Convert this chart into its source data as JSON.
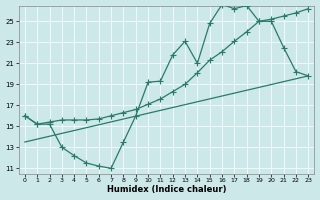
{
  "xlabel": "Humidex (Indice chaleur)",
  "bg_color": "#cce8e8",
  "line_color": "#2a7a6a",
  "grid_color": "#b0d4d4",
  "xlim": [
    -0.5,
    23.5
  ],
  "ylim": [
    10.5,
    26.5
  ],
  "xticks": [
    0,
    1,
    2,
    3,
    4,
    5,
    6,
    7,
    8,
    9,
    10,
    11,
    12,
    13,
    14,
    15,
    16,
    17,
    18,
    19,
    20,
    21,
    22,
    23
  ],
  "yticks": [
    11,
    13,
    15,
    17,
    19,
    21,
    23,
    25
  ],
  "line1_x": [
    0,
    1,
    2,
    3,
    4,
    5,
    6,
    7,
    8,
    9,
    10,
    11,
    12,
    13,
    14,
    15,
    16,
    17,
    18,
    19,
    20,
    21,
    22,
    23
  ],
  "line1_y": [
    16.0,
    15.2,
    15.2,
    13.0,
    12.2,
    11.5,
    11.2,
    11.0,
    13.5,
    16.0,
    19.2,
    19.3,
    21.8,
    23.1,
    21.0,
    24.8,
    26.6,
    26.2,
    26.5,
    25.0,
    25.0,
    22.5,
    20.2,
    19.8
  ],
  "line2_x": [
    0,
    1,
    2,
    3,
    4,
    5,
    6,
    7,
    8,
    9,
    10,
    11,
    12,
    13,
    14,
    15,
    16,
    17,
    18,
    19,
    20,
    21,
    22,
    23
  ],
  "line2_y": [
    16.0,
    15.2,
    15.4,
    15.6,
    15.6,
    15.6,
    15.7,
    16.0,
    16.3,
    16.6,
    17.1,
    17.6,
    18.3,
    19.0,
    20.1,
    21.3,
    22.1,
    23.1,
    24.0,
    25.0,
    25.2,
    25.5,
    25.8,
    26.2
  ],
  "line3_x": [
    0,
    23
  ],
  "line3_y": [
    13.5,
    19.8
  ]
}
